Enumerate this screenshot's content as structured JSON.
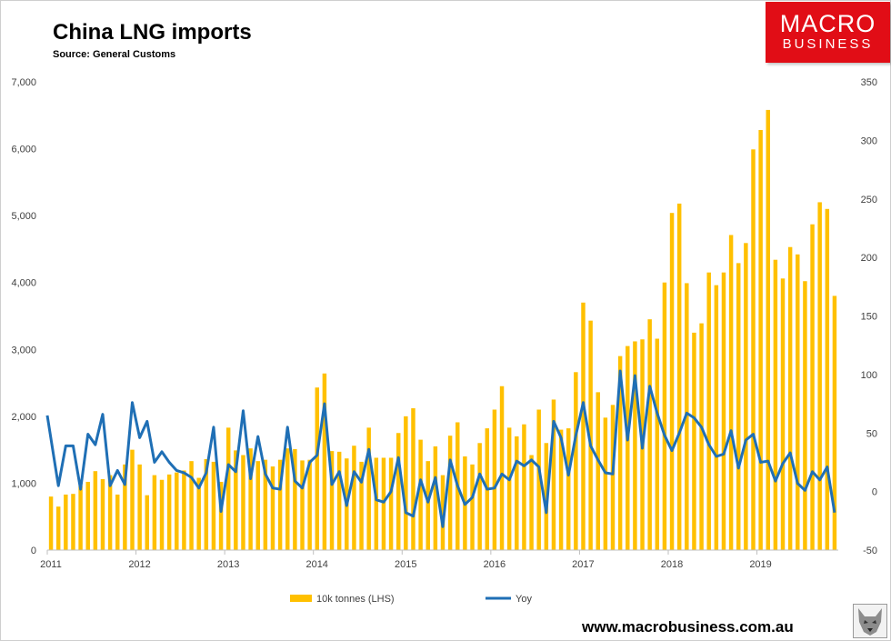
{
  "header": {
    "title": "China LNG imports",
    "subtitle": "Source: General Customs"
  },
  "logo": {
    "line1": "MACRO",
    "line2": "BUSINESS",
    "color": "#e10d16"
  },
  "footer": {
    "website": "www.macrobusiness.com.au",
    "icon": "wolf-icon"
  },
  "colors": {
    "bars": "#ffc000",
    "line": "#1f6fb5"
  },
  "chart_data": {
    "type": "bar",
    "start": "2011-01",
    "x_ticks": [
      "2011",
      "2012",
      "2013",
      "2014",
      "2015",
      "2016",
      "2017",
      "2018",
      "2019"
    ],
    "y_left": {
      "min": 0,
      "max": 7000,
      "ticks": [
        "0",
        "1,000",
        "2,000",
        "3,000",
        "4,000",
        "5,000",
        "6,000",
        "7,000"
      ]
    },
    "y_right": {
      "min": -50,
      "max": 350,
      "ticks": [
        "-50",
        "0",
        "50",
        "100",
        "150",
        "200",
        "250",
        "300",
        "350"
      ]
    },
    "legend_position": "bottom",
    "series": [
      {
        "name": "10k tonnes (LHS)",
        "type": "bar",
        "axis": "left",
        "values": [
          800,
          650,
          830,
          840,
          960,
          1020,
          1180,
          1060,
          1120,
          830,
          1280,
          1500,
          1280,
          820,
          1120,
          1050,
          1130,
          1160,
          1190,
          1330,
          1080,
          1360,
          1320,
          1020,
          1830,
          1490,
          1420,
          1520,
          1330,
          1350,
          1250,
          1350,
          1520,
          1510,
          1340,
          1350,
          2430,
          2640,
          1480,
          1470,
          1370,
          1560,
          1320,
          1830,
          1380,
          1380,
          1380,
          1750,
          2000,
          2120,
          1650,
          1330,
          1550,
          1120,
          1710,
          1910,
          1400,
          1280,
          1600,
          1820,
          2100,
          2450,
          1830,
          1700,
          1880,
          1420,
          2100,
          1600,
          2250,
          1800,
          1820,
          2660,
          3700,
          3430,
          2360,
          1980,
          2170,
          2900,
          3050,
          3120,
          3150,
          3450,
          3160,
          4000,
          5040,
          5180,
          3990,
          3250,
          3390,
          4150,
          3960,
          4150,
          4710,
          4290,
          4590,
          5990,
          6280,
          6580,
          4340,
          4060,
          4530,
          4420,
          4020,
          4870,
          5200,
          5100,
          3800
        ]
      },
      {
        "name": "Yoy",
        "type": "line",
        "axis": "right",
        "values": [
          65,
          5,
          39,
          39,
          2,
          49,
          40,
          66,
          5,
          18,
          6,
          76,
          46,
          60,
          25,
          34,
          25,
          18,
          16,
          12,
          3,
          16,
          55,
          -17,
          23,
          17,
          69,
          11,
          47,
          15,
          3,
          2,
          55,
          9,
          3,
          25,
          31,
          75,
          6,
          17,
          -12,
          17,
          8,
          36,
          -7,
          -9,
          0,
          29,
          -18,
          -21,
          10,
          -9,
          12,
          -30,
          27,
          5,
          -11,
          -5,
          15,
          2,
          3,
          15,
          10,
          26,
          22,
          27,
          21,
          -18,
          60,
          46,
          14,
          48,
          76,
          39,
          27,
          16,
          15,
          103,
          44,
          99,
          37,
          90,
          67,
          48,
          35,
          50,
          67,
          63,
          55,
          40,
          30,
          32,
          52,
          20,
          44,
          49,
          25,
          26,
          9,
          24,
          33,
          7,
          1,
          17,
          10,
          21,
          -18
        ]
      }
    ]
  }
}
